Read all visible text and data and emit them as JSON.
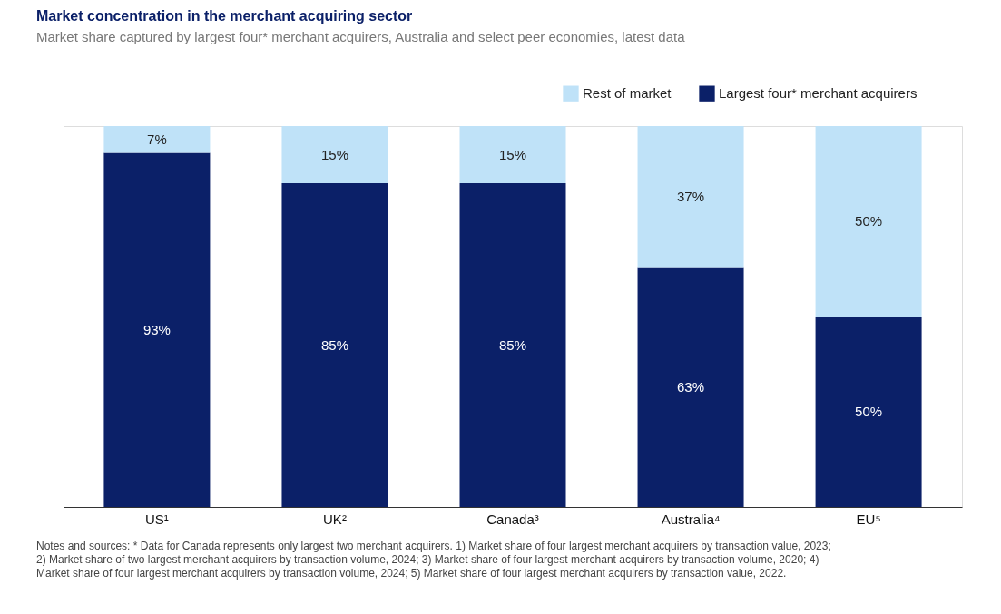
{
  "chart_data": {
    "type": "bar",
    "title": "Market concentration in the merchant acquiring sector",
    "subtitle": "Market share captured by largest four* merchant acquirers, Australia and select peer economies, latest data",
    "categories": [
      "US¹",
      "UK²",
      "Canada³",
      "Australia⁴",
      "EU⁵"
    ],
    "stacked": true,
    "series": [
      {
        "name": "Largest four* merchant acquirers",
        "color": "#0b2068",
        "values": [
          93,
          85,
          85,
          63,
          50
        ],
        "value_labels": [
          "93%",
          "85%",
          "85%",
          "63%",
          "50%"
        ]
      },
      {
        "name": "Rest of market",
        "color": "#bfe2f8",
        "values": [
          7,
          15,
          15,
          37,
          50
        ],
        "value_labels": [
          "7%",
          "15%",
          "15%",
          "37%",
          "50%"
        ]
      }
    ],
    "legend": "top right",
    "tick_labels": "x",
    "annotations": [
      "Notes and sources: * Data for Canada represents only largest two merchant acquirers. 1) Market share of four largest merchant acquirers by transaction value, 2023; 2) Market share of two largest merchant acquirers by transaction volume, 2024; 3) Market share of four largest merchant acquirers by transaction volume, 2020; 4) Market share of four largest merchant acquirers by transaction volume, 2024; 5) Market share of four largest merchant acquirers by transaction value, 2022."
    ]
  }
}
